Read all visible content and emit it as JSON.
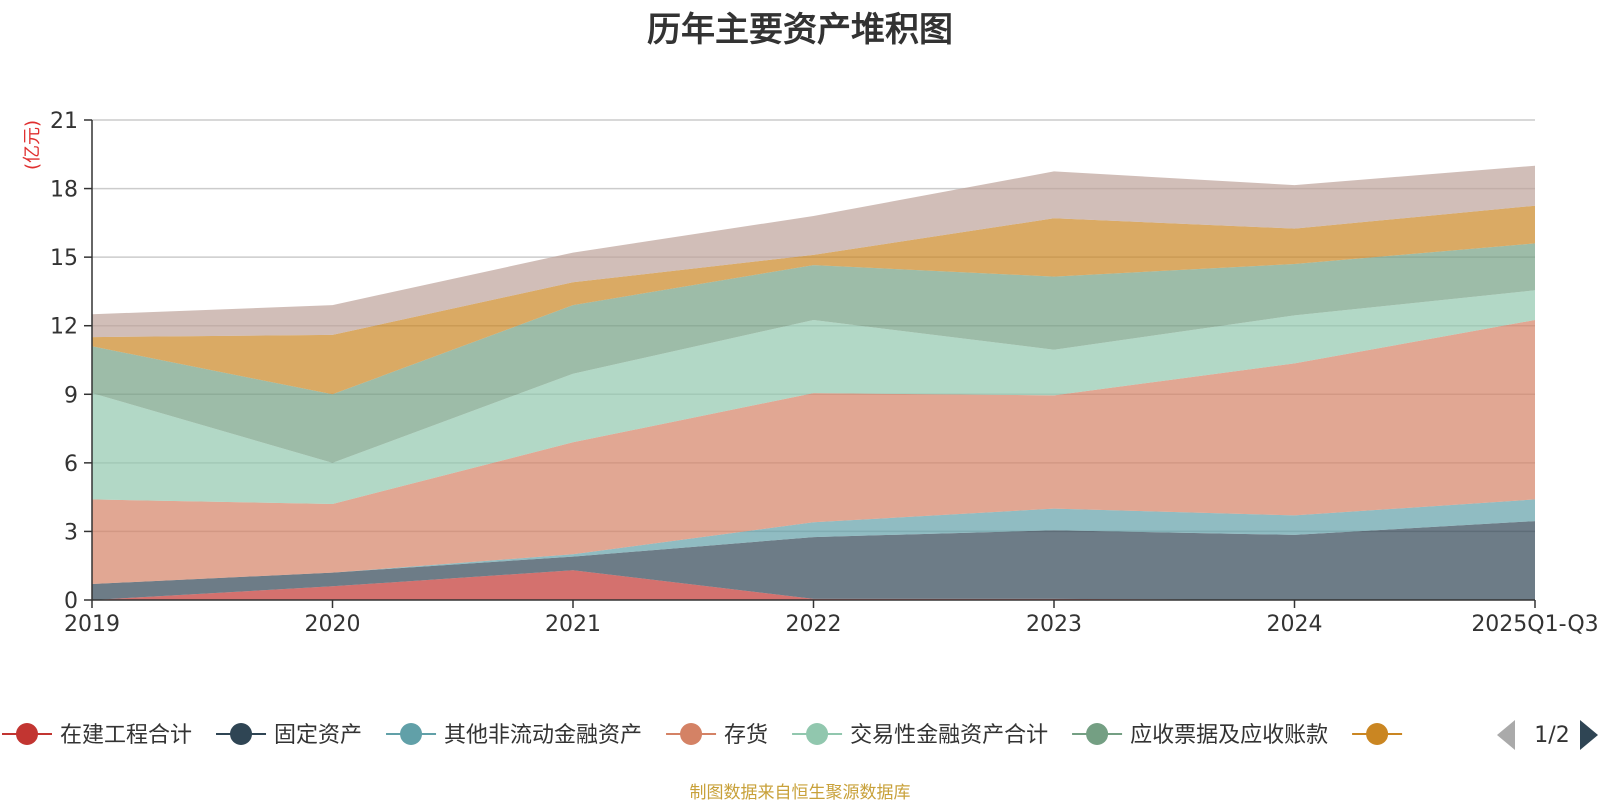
{
  "page": {
    "title": "历年主要资产堆积图",
    "footer": "制图数据来自恒生聚源数据库"
  },
  "chart_data": {
    "type": "area",
    "stacked": true,
    "title": "历年主要资产堆积图",
    "ylabel": "(亿元)",
    "xlabel": "",
    "categories": [
      "2019",
      "2020",
      "2021",
      "2022",
      "2023",
      "2024",
      "2025Q1-Q3"
    ],
    "ylim": [
      0,
      21
    ],
    "yticks": [
      0,
      3,
      6,
      9,
      12,
      15,
      18,
      21
    ],
    "grid": true,
    "series": [
      {
        "name": "在建工程合计",
        "color": "#c23531",
        "values": [
          0.0,
          0.6,
          1.3,
          0.05,
          0.05,
          0.0,
          0.0
        ]
      },
      {
        "name": "固定资产",
        "color": "#2f4554",
        "values": [
          0.7,
          0.6,
          0.6,
          2.7,
          3.0,
          2.85,
          3.45
        ]
      },
      {
        "name": "其他非流动金融资产",
        "color": "#61a0a8",
        "values": [
          0.0,
          0.0,
          0.1,
          0.65,
          0.95,
          0.85,
          0.95
        ]
      },
      {
        "name": "存货",
        "color": "#d48265",
        "values": [
          3.7,
          3.0,
          4.9,
          5.65,
          4.95,
          6.65,
          7.85
        ]
      },
      {
        "name": "交易性金融资产合计",
        "color": "#91c7ae",
        "values": [
          4.65,
          1.8,
          3.0,
          3.2,
          2.0,
          2.1,
          1.3
        ]
      },
      {
        "name": "应收票据及应收账款",
        "color": "#749f83",
        "values": [
          2.05,
          3.0,
          3.0,
          2.4,
          3.2,
          2.25,
          2.05
        ]
      },
      {
        "name": "",
        "color": "#ca8622",
        "values": [
          0.4,
          2.6,
          1.0,
          0.45,
          2.55,
          1.55,
          1.65
        ]
      },
      {
        "name": "",
        "color": "#bda29a",
        "values": [
          1.0,
          1.3,
          1.3,
          1.7,
          2.05,
          1.9,
          1.75
        ]
      }
    ],
    "legend": {
      "position": "bottom",
      "page_indicator": "1/2",
      "visible_items": [
        "在建工程合计",
        "固定资产",
        "其他非流动金融资产",
        "存货",
        "交易性金融资产合计",
        "应收票据及应收账款",
        ""
      ],
      "visible_colors": [
        "#c23531",
        "#2f4554",
        "#61a0a8",
        "#d48265",
        "#91c7ae",
        "#749f83",
        "#ca8622"
      ]
    }
  }
}
